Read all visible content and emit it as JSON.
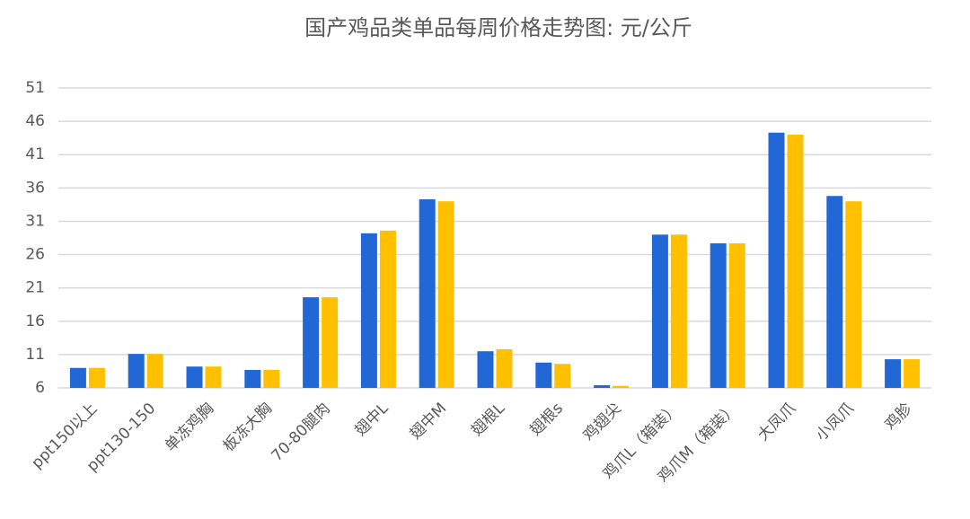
{
  "chart_data": {
    "type": "bar",
    "title": "国产鸡品类单品每周价格走势图:  元/公斤",
    "categories": [
      "ppt150以上",
      "ppt130-150",
      "单冻鸡胸",
      "板冻大胸",
      "70-80腿肉",
      "翅中L",
      "翅中M",
      "翅根L",
      "翅根s",
      "鸡翅尖",
      "鸡爪L（箱装）",
      "鸡爪M（箱装）",
      "大凤爪",
      "小凤爪",
      "鸡胗"
    ],
    "series": [
      {
        "color": "#2167d6",
        "values": [
          9.0,
          11.1,
          9.2,
          8.7,
          19.6,
          29.2,
          34.3,
          11.5,
          9.8,
          6.4,
          29.0,
          27.7,
          44.3,
          34.8,
          10.3
        ]
      },
      {
        "color": "#ffc000",
        "values": [
          9.0,
          11.1,
          9.2,
          8.7,
          19.6,
          29.6,
          34.0,
          11.8,
          9.6,
          6.3,
          29.0,
          27.7,
          44.0,
          34.0,
          10.3
        ]
      }
    ],
    "ylim": [
      6,
      51
    ],
    "yticks": [
      6,
      11,
      16,
      21,
      26,
      31,
      36,
      41,
      46,
      51
    ],
    "grid": true
  }
}
